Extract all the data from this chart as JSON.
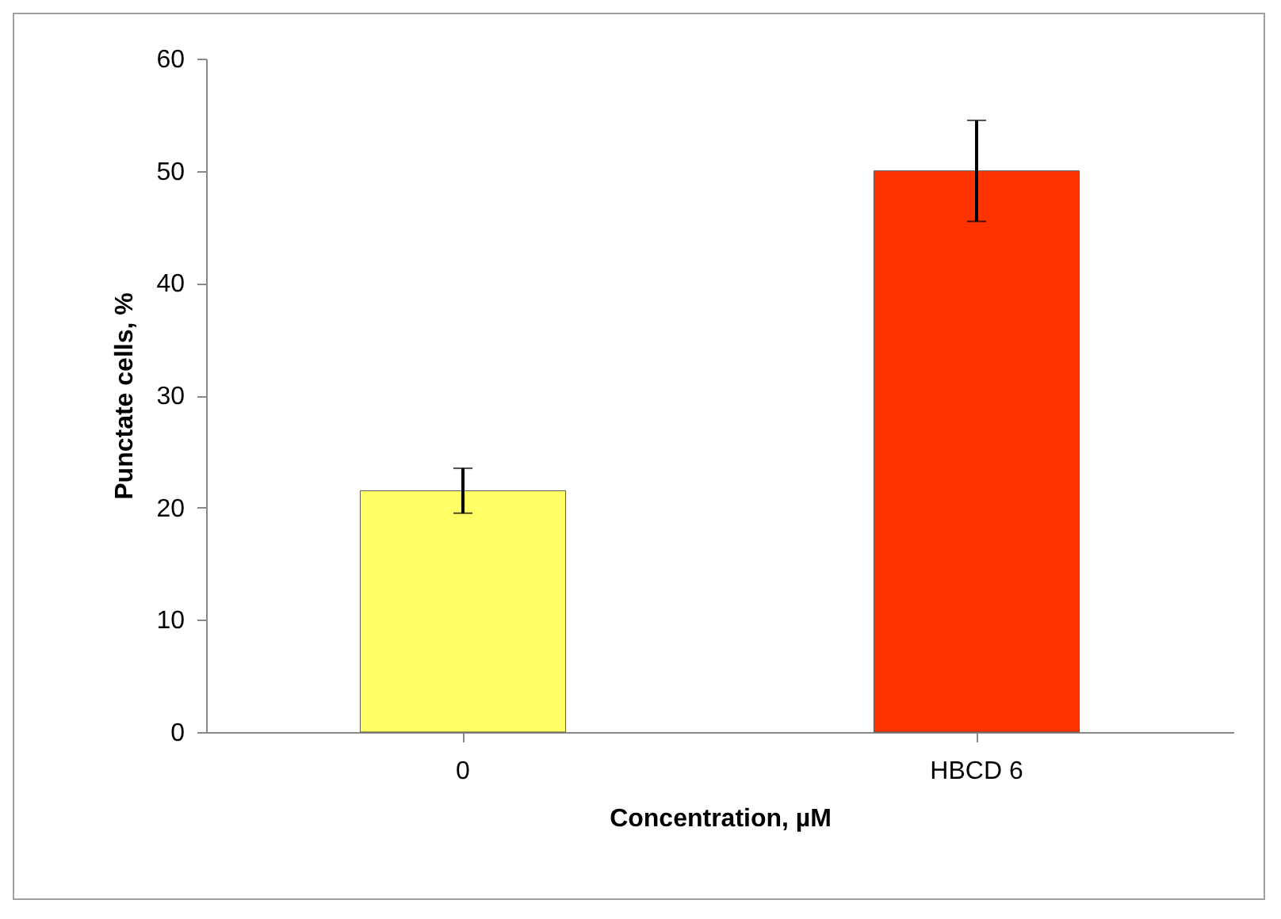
{
  "chart_data": {
    "type": "bar",
    "xlabel": "Concentration, µM",
    "ylabel": "Punctate cells, %",
    "categories": [
      "0",
      "HBCD 6"
    ],
    "values": [
      21.5,
      50.0
    ],
    "colors": [
      "#ffff66",
      "#ff3300"
    ],
    "errors": [
      2.0,
      4.5
    ],
    "ylim": [
      0,
      60
    ],
    "yticks": [
      0,
      10,
      20,
      30,
      40,
      50,
      60
    ],
    "grid": false
  }
}
